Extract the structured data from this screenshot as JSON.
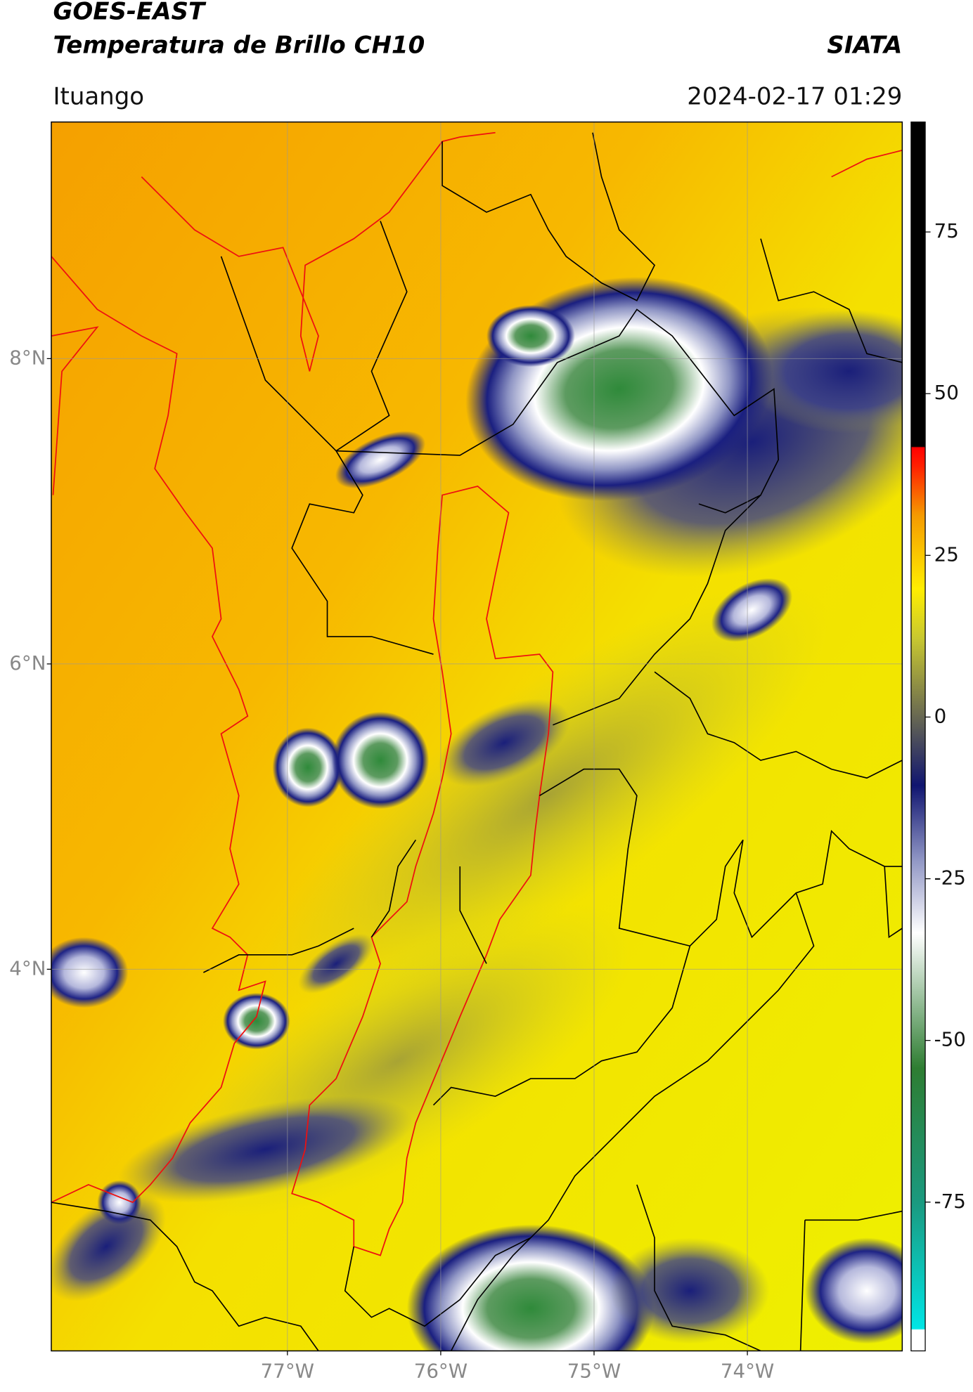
{
  "header": {
    "title": "GOES-EAST",
    "subtitle": "Temperatura de Brillo CH10",
    "brand": "SIATA",
    "location": "Ituango",
    "datetime": "2024-02-17 01:29"
  },
  "map": {
    "latlim": [
      1.5,
      9.55
    ],
    "lonlim": [
      -78.54,
      -72.99
    ],
    "latticks": [
      {
        "value": 8,
        "label": "8°N"
      },
      {
        "value": 6,
        "label": "6°N"
      },
      {
        "value": 4,
        "label": "4°N"
      }
    ],
    "lonticks": [
      {
        "value": -77,
        "label": "77°W"
      },
      {
        "value": -76,
        "label": "76°W"
      },
      {
        "value": -75,
        "label": "75°W"
      },
      {
        "value": -74,
        "label": "74°W"
      }
    ],
    "grid": true
  },
  "colorbar": {
    "lim": [
      -98,
      92
    ],
    "ticks": [
      75,
      50,
      25,
      0,
      -25,
      -50,
      -75
    ]
  }
}
